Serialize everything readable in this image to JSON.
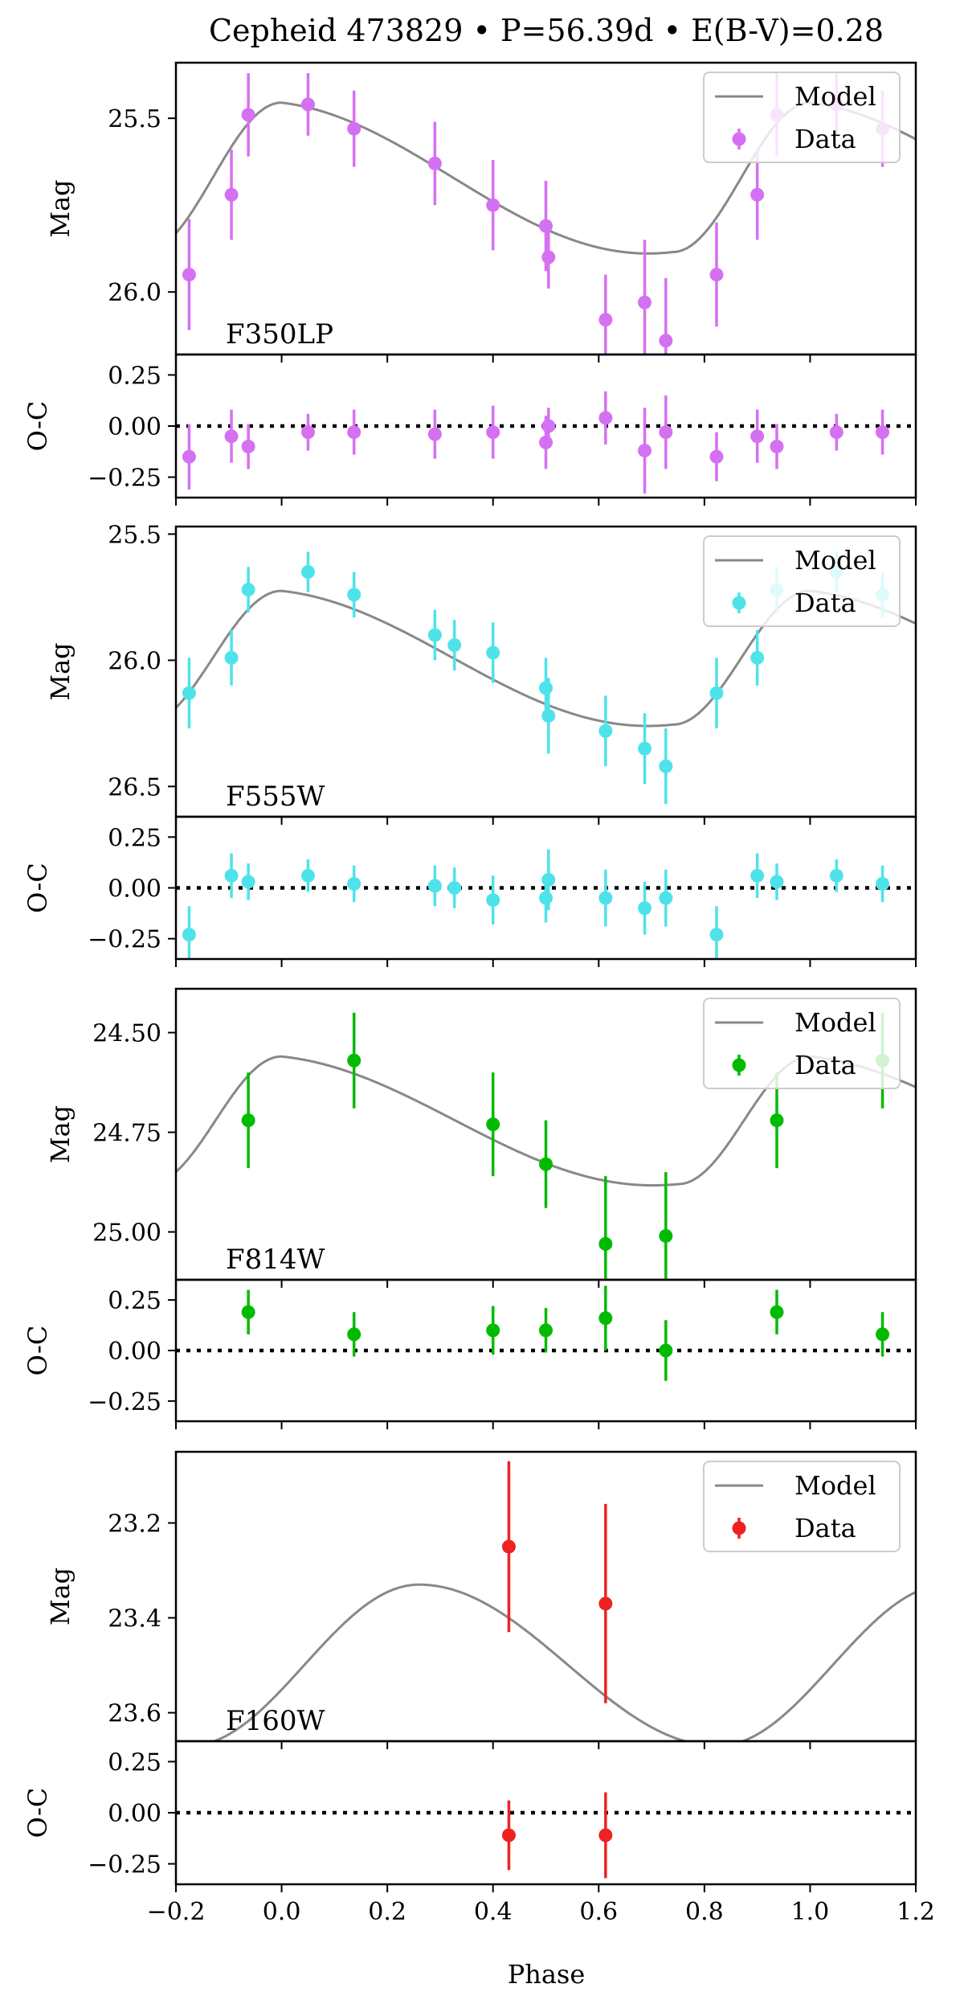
{
  "chart_data": {
    "type": "line",
    "title": "Cepheid 473829 • P=56.39d • E(B-V)=0.28",
    "xlabel": "Phase",
    "xlim": [
      -0.2,
      1.2
    ],
    "xticks": [
      -0.2,
      0.0,
      0.2,
      0.4,
      0.6,
      0.8,
      1.0,
      1.2
    ],
    "xtick_labels": [
      "−0.2",
      "0.0",
      "0.2",
      "0.4",
      "0.6",
      "0.8",
      "1.0",
      "1.2"
    ],
    "residual_ylabel": "O-C",
    "mag_ylabel": "Mag",
    "residual_ylim": [
      -0.35,
      0.35
    ],
    "residual_yticks": [
      0.25,
      0.0,
      -0.25
    ],
    "residual_ytick_labels": [
      "0.25",
      "0.00",
      "−0.25"
    ],
    "legend": {
      "model": "Model",
      "data": "Data",
      "position": "top-right"
    },
    "bands": [
      {
        "name": "F350LP",
        "color": "#d670f2",
        "ylim": [
          25.34,
          26.18
        ],
        "yticks": [
          25.5,
          26.0
        ],
        "ytick_labels": [
          "25.5",
          "26.0"
        ],
        "model": {
          "min_phase": 0.0,
          "max_phase": 0.74,
          "mean": 25.67,
          "amp": 0.215,
          "bump": 0.2
        },
        "points": [
          {
            "phase": -0.175,
            "mag": 25.95,
            "err": 0.16,
            "oc": -0.15,
            "oc_err": 0.16
          },
          {
            "phase": -0.095,
            "mag": 25.72,
            "err": 0.13,
            "oc": -0.05,
            "oc_err": 0.13
          },
          {
            "phase": -0.063,
            "mag": 25.49,
            "err": 0.12,
            "oc": -0.1,
            "oc_err": 0.11
          },
          {
            "phase": 0.05,
            "mag": 25.46,
            "err": 0.09,
            "oc": -0.03,
            "oc_err": 0.09
          },
          {
            "phase": 0.137,
            "mag": 25.53,
            "err": 0.11,
            "oc": -0.03,
            "oc_err": 0.11
          },
          {
            "phase": 0.29,
            "mag": 25.63,
            "err": 0.12,
            "oc": -0.04,
            "oc_err": 0.12
          },
          {
            "phase": 0.4,
            "mag": 25.75,
            "err": 0.13,
            "oc": -0.03,
            "oc_err": 0.13
          },
          {
            "phase": 0.5,
            "mag": 25.81,
            "err": 0.13,
            "oc": -0.08,
            "oc_err": 0.13
          },
          {
            "phase": 0.505,
            "mag": 25.9,
            "err": 0.09,
            "oc": 0.0,
            "oc_err": 0.09
          },
          {
            "phase": 0.613,
            "mag": 26.08,
            "err": 0.13,
            "oc": 0.04,
            "oc_err": 0.13
          },
          {
            "phase": 0.687,
            "mag": 26.03,
            "err": 0.18,
            "oc": -0.12,
            "oc_err": 0.21
          },
          {
            "phase": 0.727,
            "mag": 26.14,
            "err": 0.18,
            "oc": -0.03,
            "oc_err": 0.18
          },
          {
            "phase": 0.823,
            "mag": 25.95,
            "err": 0.15,
            "oc": -0.15,
            "oc_err": 0.12
          },
          {
            "phase": 0.9,
            "mag": 25.72,
            "err": 0.13,
            "oc": -0.05,
            "oc_err": 0.13
          },
          {
            "phase": 0.937,
            "mag": 25.49,
            "err": 0.12,
            "oc": -0.1,
            "oc_err": 0.11
          },
          {
            "phase": 1.05,
            "mag": 25.46,
            "err": 0.09,
            "oc": -0.03,
            "oc_err": 0.09
          },
          {
            "phase": 1.137,
            "mag": 25.53,
            "err": 0.11,
            "oc": -0.03,
            "oc_err": 0.11
          }
        ]
      },
      {
        "name": "F555W",
        "color": "#4ee3ea",
        "ylim": [
          25.47,
          26.62
        ],
        "yticks": [
          25.5,
          26.0,
          26.5
        ],
        "ytick_labels": [
          "25.5",
          "26.0",
          "26.5"
        ],
        "model": {
          "min_phase": 0.0,
          "max_phase": 0.74,
          "mean": 25.99,
          "amp": 0.265,
          "bump": 0.2
        },
        "points": [
          {
            "phase": -0.175,
            "mag": 26.13,
            "err": 0.14,
            "oc": -0.23,
            "oc_err": 0.14
          },
          {
            "phase": -0.095,
            "mag": 25.99,
            "err": 0.11,
            "oc": 0.06,
            "oc_err": 0.11
          },
          {
            "phase": -0.063,
            "mag": 25.72,
            "err": 0.09,
            "oc": 0.03,
            "oc_err": 0.09
          },
          {
            "phase": 0.05,
            "mag": 25.65,
            "err": 0.08,
            "oc": 0.06,
            "oc_err": 0.08
          },
          {
            "phase": 0.137,
            "mag": 25.74,
            "err": 0.09,
            "oc": 0.02,
            "oc_err": 0.09
          },
          {
            "phase": 0.29,
            "mag": 25.9,
            "err": 0.1,
            "oc": 0.01,
            "oc_err": 0.1
          },
          {
            "phase": 0.327,
            "mag": 25.94,
            "err": 0.1,
            "oc": 0.0,
            "oc_err": 0.1
          },
          {
            "phase": 0.4,
            "mag": 25.97,
            "err": 0.12,
            "oc": -0.06,
            "oc_err": 0.12
          },
          {
            "phase": 0.5,
            "mag": 26.11,
            "err": 0.12,
            "oc": -0.05,
            "oc_err": 0.12
          },
          {
            "phase": 0.505,
            "mag": 26.22,
            "err": 0.15,
            "oc": 0.04,
            "oc_err": 0.15
          },
          {
            "phase": 0.613,
            "mag": 26.28,
            "err": 0.14,
            "oc": -0.05,
            "oc_err": 0.14
          },
          {
            "phase": 0.687,
            "mag": 26.35,
            "err": 0.14,
            "oc": -0.1,
            "oc_err": 0.13
          },
          {
            "phase": 0.727,
            "mag": 26.42,
            "err": 0.15,
            "oc": -0.05,
            "oc_err": 0.14
          },
          {
            "phase": 0.823,
            "mag": 26.13,
            "err": 0.14,
            "oc": -0.23,
            "oc_err": 0.14
          },
          {
            "phase": 0.9,
            "mag": 25.99,
            "err": 0.11,
            "oc": 0.06,
            "oc_err": 0.11
          },
          {
            "phase": 0.937,
            "mag": 25.72,
            "err": 0.09,
            "oc": 0.03,
            "oc_err": 0.09
          },
          {
            "phase": 1.05,
            "mag": 25.65,
            "err": 0.08,
            "oc": 0.06,
            "oc_err": 0.08
          },
          {
            "phase": 1.137,
            "mag": 25.74,
            "err": 0.09,
            "oc": 0.02,
            "oc_err": 0.09
          }
        ]
      },
      {
        "name": "F814W",
        "color": "#00bb00",
        "ylim": [
          24.39,
          25.12
        ],
        "yticks": [
          24.5,
          24.75,
          25.0
        ],
        "ytick_labels": [
          "24.50",
          "24.75",
          "25.00"
        ],
        "model": {
          "min_phase": 0.0,
          "max_phase": 0.75,
          "mean": 24.72,
          "amp": 0.16,
          "bump": 0.2
        },
        "points": [
          {
            "phase": -0.063,
            "mag": 24.72,
            "err": 0.12,
            "oc": 0.19,
            "oc_err": 0.11
          },
          {
            "phase": 0.137,
            "mag": 24.57,
            "err": 0.12,
            "oc": 0.08,
            "oc_err": 0.11
          },
          {
            "phase": 0.4,
            "mag": 24.73,
            "err": 0.13,
            "oc": 0.1,
            "oc_err": 0.12
          },
          {
            "phase": 0.5,
            "mag": 24.83,
            "err": 0.11,
            "oc": 0.1,
            "oc_err": 0.11
          },
          {
            "phase": 0.613,
            "mag": 25.03,
            "err": 0.17,
            "oc": 0.16,
            "oc_err": 0.16
          },
          {
            "phase": 0.727,
            "mag": 25.01,
            "err": 0.16,
            "oc": 0.0,
            "oc_err": 0.15
          },
          {
            "phase": 0.937,
            "mag": 24.72,
            "err": 0.12,
            "oc": 0.19,
            "oc_err": 0.11
          },
          {
            "phase": 1.137,
            "mag": 24.57,
            "err": 0.12,
            "oc": 0.08,
            "oc_err": 0.11
          }
        ]
      },
      {
        "name": "F160W",
        "color": "#ee2222",
        "ylim": [
          23.05,
          23.66
        ],
        "yticks": [
          23.2,
          23.4,
          23.6
        ],
        "ytick_labels": [
          "23.2",
          "23.4",
          "23.6"
        ],
        "model": {
          "min_phase": 0.26,
          "max_phase": 0.825,
          "mean": 23.5,
          "amp": 0.17,
          "bump": 0.0
        },
        "points": [
          {
            "phase": 0.43,
            "mag": 23.25,
            "err": 0.18,
            "oc": -0.11,
            "oc_err": 0.17
          },
          {
            "phase": 0.613,
            "mag": 23.37,
            "err": 0.21,
            "oc": -0.11,
            "oc_err": 0.21
          }
        ]
      }
    ]
  }
}
